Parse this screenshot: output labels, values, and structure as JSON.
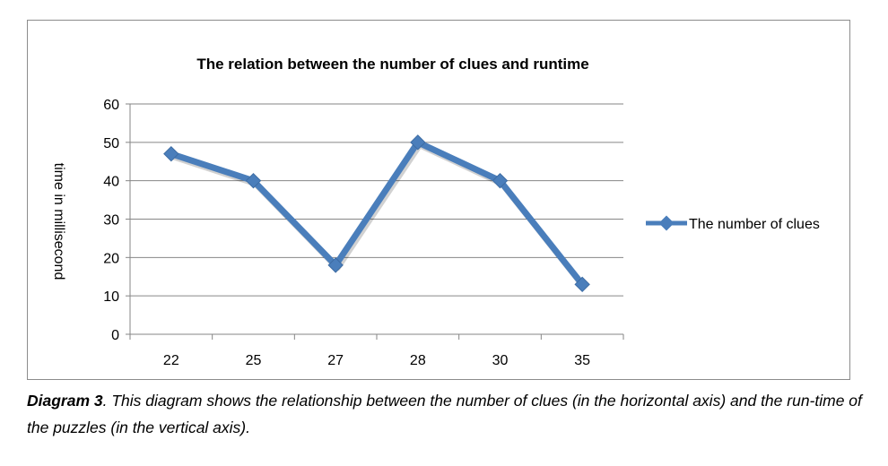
{
  "chart_data": {
    "type": "line",
    "title": "The relation between the number of clues and runtime",
    "xlabel": "",
    "ylabel": "time in millisecond",
    "categories": [
      "22",
      "25",
      "27",
      "28",
      "30",
      "35"
    ],
    "series": [
      {
        "name": "The number of clues",
        "values": [
          47,
          40,
          18,
          50,
          40,
          13
        ],
        "color": "#4a7ebb"
      }
    ],
    "ylim": [
      0,
      60
    ],
    "yticks": [
      "0",
      "10",
      "20",
      "30",
      "40",
      "50",
      "60"
    ],
    "grid": true,
    "legend": "right",
    "marker": "diamond"
  },
  "caption": {
    "label": "Diagram 3",
    "text": ". This diagram shows the relationship between the number of clues (in the horizontal axis) and the run-time of the puzzles (in the vertical axis)."
  }
}
